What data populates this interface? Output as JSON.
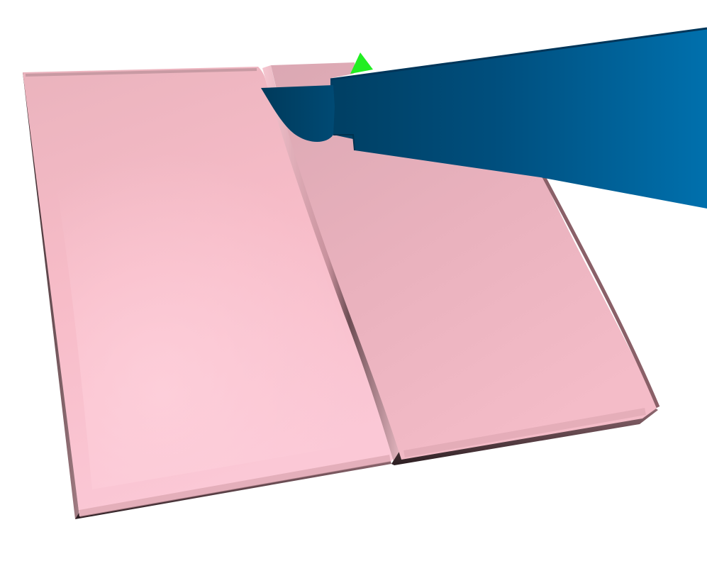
{
  "scene": {
    "background_color": "#ffffff",
    "objects": [
      {
        "name": "left-tissue-slab",
        "color": "#f7bcc8"
      },
      {
        "name": "right-tissue-slab",
        "color": "#f2b6c2"
      },
      {
        "name": "surgical-tool",
        "color": "#005a8c"
      },
      {
        "name": "green-marker",
        "color": "#22ee22"
      }
    ]
  }
}
